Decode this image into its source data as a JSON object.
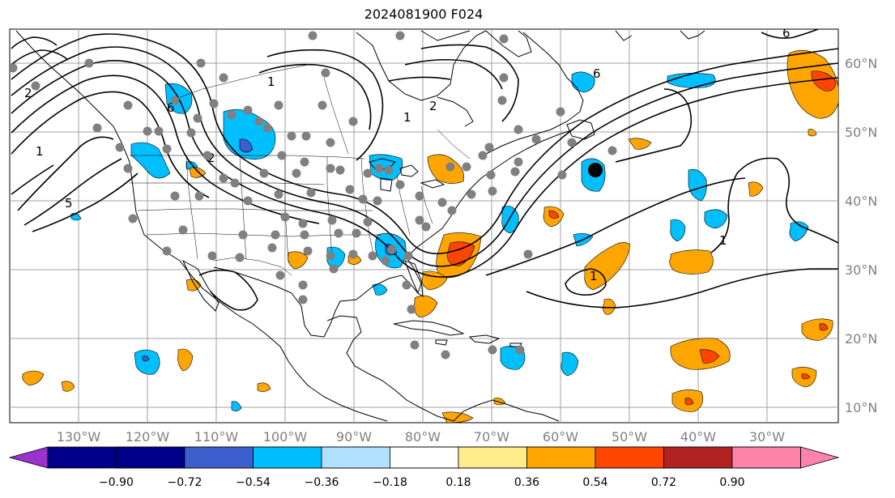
{
  "title": "2024081900 F024",
  "lon_labels": [
    "130°W",
    "120°W",
    "110°W",
    "100°W",
    "90°W",
    "80°W",
    "70°W",
    "60°W",
    "50°W",
    "40°W",
    "30°W"
  ],
  "lat_labels": [
    "60°N",
    "50°N",
    "40°N",
    "30°N",
    "20°N",
    "10°N"
  ],
  "colorbar": {
    "labels": [
      "−0.90",
      "−0.72",
      "−0.54",
      "−0.36",
      "−0.18",
      "0.18",
      "0.36",
      "0.54",
      "0.72",
      "0.90"
    ],
    "colors": [
      "#9a32cd",
      "#00008b",
      "#3c5fcd",
      "#00bfff",
      "#b0e2ff",
      "#ffffff",
      "#ffec8b",
      "#ffa500",
      "#ff4500",
      "#b22222",
      "#ff82ab"
    ]
  },
  "contour_labels": [
    "2",
    "1",
    "5",
    "6",
    "2",
    "1",
    "2",
    "1",
    "6",
    "1",
    "1",
    "6"
  ],
  "colors": {
    "land_outline": "#000000",
    "grid": "#a0a0a0",
    "station_dot": "#808080",
    "marker": "#000000"
  }
}
